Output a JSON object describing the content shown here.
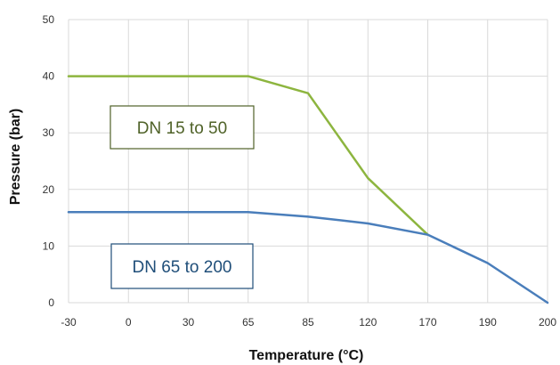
{
  "chart_data": {
    "type": "line",
    "title": "",
    "xlabel": "Temperature (°C)",
    "ylabel": "Pressure (bar)",
    "x": [
      "-30",
      "0",
      "30",
      "65",
      "85",
      "120",
      "170",
      "190",
      "200"
    ],
    "ylim": [
      0,
      50
    ],
    "yticks": [
      "0",
      "10",
      "20",
      "30",
      "40",
      "50"
    ],
    "grid": true,
    "series": [
      {
        "name": "DN 15 to 50",
        "color": "#8DB53F",
        "values": [
          40,
          40,
          40,
          40,
          37,
          22,
          12,
          null,
          null
        ]
      },
      {
        "name": "DN 65 to 200",
        "color": "#4A7EBB",
        "values": [
          16,
          16,
          16,
          16,
          15.2,
          14,
          12,
          7,
          0
        ]
      }
    ],
    "annotations": [
      {
        "text": "DN 15 to 50",
        "color": "#4F6228"
      },
      {
        "text": "DN 65 to 200",
        "color": "#1F4E79"
      }
    ]
  }
}
